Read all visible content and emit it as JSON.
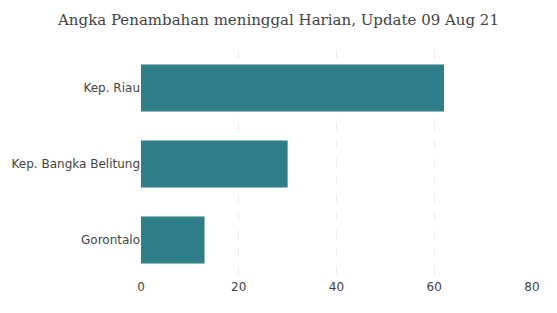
{
  "chart_data": {
    "type": "bar",
    "orientation": "horizontal",
    "title": "Angka Penambahan meninggal Harian, Update 09 Aug 21",
    "categories": [
      "Gorontalo",
      "Kep. Bangka Belitung",
      "Kep. Riau"
    ],
    "values": [
      13,
      30,
      62
    ],
    "color": "#2e7f8a",
    "xlim": [
      0,
      80
    ],
    "xticks": [
      0,
      20,
      40,
      60,
      80
    ],
    "grid": true
  }
}
